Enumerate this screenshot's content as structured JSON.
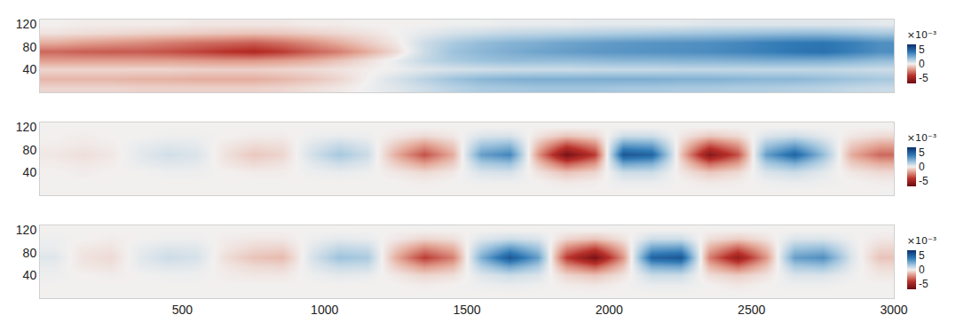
{
  "chart_data": [
    {
      "type": "heatmap",
      "tick_labels": "y",
      "x": [
        50,
        150,
        250,
        350,
        450,
        550,
        650,
        750,
        850,
        950,
        1050,
        1150,
        1250,
        1350,
        1450,
        1550,
        1650,
        1750,
        1850,
        1950,
        2050,
        2150,
        2250,
        2350,
        2450,
        2550,
        2650,
        2750,
        2850,
        2950
      ],
      "y": [
        8,
        24,
        40,
        56,
        72,
        88,
        104,
        120
      ],
      "cells": [
        [
          -0.6,
          -0.6,
          -0.6,
          -0.7,
          -0.7,
          -0.7,
          -0.7,
          -0.7,
          -0.6,
          -0.4,
          -0.2,
          0.1,
          0.4,
          0.8,
          1.2,
          1.5,
          1.6,
          1.7,
          1.7,
          1.7,
          1.6,
          1.6,
          1.5,
          1.5,
          1.4,
          1.4,
          1.3,
          1.2,
          1.0,
          0.9
        ],
        [
          -1.3,
          -1.3,
          -1.3,
          -1.4,
          -1.4,
          -1.5,
          -1.5,
          -1.5,
          -1.3,
          -1.0,
          -0.6,
          0,
          0.6,
          1.2,
          1.8,
          2.2,
          2.4,
          2.5,
          2.5,
          2.5,
          2.5,
          2.5,
          2.4,
          2.4,
          2.3,
          2.2,
          2.2,
          2.0,
          1.8,
          1.6
        ],
        [
          -0.6,
          -0.6,
          -0.6,
          -0.6,
          -0.6,
          -0.7,
          -0.7,
          -0.7,
          -0.6,
          -0.5,
          -0.3,
          -0.1,
          0.1,
          0.4,
          0.6,
          0.7,
          0.8,
          0.8,
          0.8,
          0.9,
          0.9,
          0.9,
          1.0,
          1.0,
          1.0,
          1.0,
          1.0,
          1.0,
          0.9,
          0.8
        ],
        [
          -1.8,
          -1.8,
          -1.8,
          -1.8,
          -1.8,
          -1.9,
          -2.0,
          -2.0,
          -1.8,
          -1.5,
          -1.0,
          -0.4,
          0.2,
          1.0,
          1.5,
          1.8,
          2.0,
          2.0,
          2.0,
          2.1,
          2.2,
          2.2,
          2.3,
          2.3,
          2.4,
          2.5,
          2.5,
          2.5,
          2.3,
          2.0
        ],
        [
          -3.0,
          -3.2,
          -3.3,
          -3.3,
          -3.5,
          -3.8,
          -4.2,
          -4.5,
          -4.0,
          -3.2,
          -2.5,
          -1.5,
          -0.5,
          0.8,
          1.8,
          2.2,
          2.5,
          2.8,
          3.0,
          3.2,
          3.3,
          3.4,
          3.5,
          3.6,
          3.8,
          4.0,
          4.3,
          4.5,
          4.0,
          3.5
        ],
        [
          -1.5,
          -1.8,
          -2.0,
          -2.2,
          -2.5,
          -2.8,
          -3.0,
          -3.2,
          -2.8,
          -2.2,
          -1.5,
          -0.8,
          -0.2,
          0.8,
          1.5,
          2.0,
          2.3,
          2.5,
          2.8,
          3.0,
          3.2,
          3.3,
          3.4,
          3.5,
          3.7,
          4.0,
          4.2,
          4.3,
          4.0,
          3.5
        ],
        [
          -0.3,
          -0.4,
          -0.5,
          -0.6,
          -0.7,
          -0.8,
          -0.9,
          -1.0,
          -0.9,
          -0.7,
          -0.5,
          -0.3,
          0,
          0.3,
          0.6,
          0.8,
          1.0,
          1.1,
          1.2,
          1.3,
          1.4,
          1.5,
          1.6,
          1.7,
          1.8,
          1.9,
          2.0,
          2.0,
          1.8,
          1.6
        ],
        [
          0,
          -0.1,
          -0.1,
          -0.1,
          -0.1,
          -0.2,
          -0.2,
          -0.2,
          -0.2,
          -0.1,
          -0.1,
          0,
          0,
          0,
          0.1,
          0.1,
          0.2,
          0.2,
          0.2,
          0.3,
          0.3,
          0.3,
          0.3,
          0.4,
          0.4,
          0.4,
          0.4,
          0.4,
          0.4,
          0.3
        ]
      ],
      "xlim": [
        0,
        3000
      ],
      "ylim": [
        0,
        128
      ],
      "xticks": [
        500,
        1000,
        1500,
        2000,
        2500,
        3000
      ],
      "yticks": [
        40,
        80,
        120
      ],
      "colorbar": {
        "range": [
          -7,
          7
        ],
        "ticks": [
          -5,
          0,
          5
        ],
        "title": "×10⁻³"
      }
    },
    {
      "type": "heatmap",
      "tick_labels": "y",
      "x": [
        50,
        150,
        250,
        350,
        450,
        550,
        650,
        750,
        850,
        950,
        1050,
        1150,
        1250,
        1350,
        1450,
        1550,
        1650,
        1750,
        1850,
        1950,
        2050,
        2150,
        2250,
        2350,
        2450,
        2550,
        2650,
        2750,
        2850,
        2950
      ],
      "y": [
        8,
        24,
        40,
        56,
        72,
        88,
        104,
        120
      ],
      "cells": [
        [
          0,
          0,
          0,
          0,
          0,
          0,
          0,
          0,
          0,
          0,
          0,
          0,
          0,
          0,
          0,
          0,
          0,
          0,
          0,
          0,
          0,
          0,
          0,
          0,
          0,
          0,
          0,
          0,
          0,
          0
        ],
        [
          0,
          0,
          0,
          0,
          0,
          0,
          0,
          0,
          0,
          0,
          0,
          0,
          0,
          -0.1,
          0,
          0.1,
          0.1,
          0,
          -0.2,
          -0.1,
          0.2,
          0.2,
          0,
          -0.2,
          -0.1,
          0.1,
          0.2,
          0.1,
          0,
          -0.1
        ],
        [
          0,
          -0.1,
          0,
          0,
          0.1,
          0.1,
          0,
          -0.1,
          -0.1,
          0.1,
          0.2,
          0.1,
          -0.2,
          -0.5,
          -0.2,
          0.5,
          0.6,
          -0.3,
          -1.0,
          -0.6,
          0.8,
          0.8,
          -0.2,
          -0.9,
          -0.5,
          0.5,
          0.8,
          0.3,
          -0.2,
          -0.5
        ],
        [
          -0.1,
          -0.2,
          -0.1,
          0.2,
          0.4,
          0.3,
          -0.2,
          -0.5,
          -0.3,
          0.3,
          0.8,
          0.4,
          -0.8,
          -1.8,
          -0.8,
          1.5,
          1.9,
          -1.0,
          -3.3,
          -2.0,
          2.8,
          2.5,
          -0.5,
          -3.0,
          -1.8,
          1.5,
          2.5,
          1.0,
          -0.8,
          -1.5
        ],
        [
          -0.2,
          -0.4,
          -0.2,
          0.3,
          0.7,
          0.5,
          -0.3,
          -0.9,
          -0.6,
          0.6,
          1.6,
          0.8,
          -1.5,
          -3.5,
          -1.5,
          3.0,
          3.8,
          -2.0,
          -6.5,
          -4.0,
          5.5,
          5.0,
          -1.0,
          -6.0,
          -3.5,
          3.0,
          5.0,
          2.0,
          -1.5,
          -3.0
        ],
        [
          -0.1,
          -0.2,
          -0.1,
          0.2,
          0.4,
          0.3,
          -0.2,
          -0.5,
          -0.4,
          0.4,
          1.0,
          0.5,
          -0.9,
          -2.1,
          -0.9,
          1.8,
          2.3,
          -1.2,
          -3.9,
          -2.4,
          3.3,
          3.0,
          -0.6,
          -3.6,
          -2.1,
          1.8,
          3.0,
          1.2,
          -0.9,
          -1.8
        ],
        [
          0,
          -0.1,
          0,
          0,
          0.1,
          0.1,
          0,
          -0.1,
          -0.1,
          0.1,
          0.2,
          0.1,
          -0.2,
          -0.5,
          -0.2,
          0.5,
          0.6,
          -0.3,
          -1.0,
          -0.6,
          0.8,
          0.8,
          -0.2,
          -0.9,
          -0.5,
          0.5,
          0.8,
          0.3,
          -0.2,
          -0.5
        ],
        [
          0,
          0,
          0,
          0,
          0,
          0,
          0,
          0,
          0,
          0,
          0,
          0,
          0,
          0,
          0,
          0,
          0,
          0,
          0,
          0,
          0,
          0,
          0,
          0,
          0,
          0,
          0,
          0,
          0,
          0
        ]
      ],
      "xlim": [
        0,
        3000
      ],
      "ylim": [
        0,
        128
      ],
      "xticks": [
        500,
        1000,
        1500,
        2000,
        2500,
        3000
      ],
      "yticks": [
        40,
        80,
        120
      ],
      "colorbar": {
        "range": [
          -7,
          7
        ],
        "ticks": [
          -5,
          0,
          5
        ],
        "title": "×10⁻³"
      }
    },
    {
      "type": "heatmap",
      "x": [
        50,
        150,
        250,
        350,
        450,
        550,
        650,
        750,
        850,
        950,
        1050,
        1150,
        1250,
        1350,
        1450,
        1550,
        1650,
        1750,
        1850,
        1950,
        2050,
        2150,
        2250,
        2350,
        2450,
        2550,
        2650,
        2750,
        2850,
        2950
      ],
      "y": [
        8,
        24,
        40,
        56,
        72,
        88,
        104,
        120
      ],
      "cells": [
        [
          0,
          0,
          0,
          0,
          0,
          0,
          0,
          0,
          0,
          0,
          0,
          0,
          0,
          0,
          0,
          0,
          0,
          0,
          0,
          0,
          0,
          0,
          0,
          0,
          0,
          0,
          0,
          0,
          0,
          0
        ],
        [
          0,
          0,
          0,
          0,
          0,
          0,
          0,
          0,
          0,
          0,
          0,
          0,
          0,
          -0.1,
          0,
          0.1,
          0.2,
          0.1,
          -0.1,
          -0.2,
          0,
          0.2,
          0.2,
          0,
          -0.2,
          0,
          0.1,
          0.1,
          0,
          0
        ],
        [
          0.1,
          0,
          -0.1,
          0,
          0.1,
          0.1,
          -0.1,
          -0.2,
          -0.2,
          0.1,
          0.3,
          0.2,
          -0.2,
          -0.6,
          -0.4,
          0.4,
          0.8,
          0.5,
          -0.6,
          -1.0,
          -0.3,
          0.8,
          0.8,
          -0.4,
          -0.8,
          -0.3,
          0.5,
          0.5,
          0.1,
          -0.2
        ],
        [
          0.2,
          -0.2,
          -0.3,
          0.2,
          0.4,
          0.3,
          -0.2,
          -0.5,
          -0.6,
          0.3,
          0.9,
          0.8,
          -0.8,
          -2.0,
          -1.3,
          1.3,
          2.8,
          1.5,
          -2.0,
          -3.3,
          -1.0,
          2.5,
          2.8,
          -1.3,
          -2.8,
          -1.0,
          1.5,
          1.8,
          0.3,
          -0.5
        ],
        [
          0.4,
          -0.3,
          -0.5,
          0.3,
          0.8,
          0.6,
          -0.4,
          -1.0,
          -1.2,
          0.5,
          1.8,
          1.5,
          -1.5,
          -4.0,
          -2.5,
          2.5,
          5.5,
          3.0,
          -4.0,
          -6.5,
          -2.0,
          5.0,
          5.5,
          -2.5,
          -5.5,
          -2.0,
          3.0,
          3.5,
          0.5,
          -1.0
        ],
        [
          0.2,
          -0.2,
          -0.3,
          0.2,
          0.5,
          0.4,
          -0.2,
          -0.6,
          -0.7,
          0.3,
          1.1,
          0.9,
          -0.9,
          -2.4,
          -1.5,
          1.5,
          3.3,
          1.8,
          -2.4,
          -3.9,
          -1.2,
          3.0,
          3.3,
          -1.5,
          -3.3,
          -1.2,
          1.8,
          2.1,
          0.3,
          -0.6
        ],
        [
          0.1,
          0,
          -0.1,
          0,
          0.1,
          0.1,
          -0.1,
          -0.2,
          -0.2,
          0.1,
          0.3,
          0.2,
          -0.2,
          -0.6,
          -0.4,
          0.4,
          0.8,
          0.5,
          -0.6,
          -1.0,
          -0.3,
          0.8,
          0.8,
          -0.4,
          -0.8,
          -0.3,
          0.5,
          0.5,
          0.1,
          -0.2
        ],
        [
          0,
          0,
          0,
          0,
          0,
          0,
          0,
          0,
          0,
          0,
          0,
          0,
          0,
          0,
          0,
          0,
          0,
          0,
          0,
          0,
          0,
          0,
          0,
          0,
          0,
          0,
          0,
          0,
          0,
          0
        ]
      ],
      "xlim": [
        0,
        3000
      ],
      "ylim": [
        0,
        128
      ],
      "xticks": [
        500,
        1000,
        1500,
        2000,
        2500,
        3000
      ],
      "yticks": [
        40,
        80,
        120
      ],
      "colorbar": {
        "range": [
          -7,
          7
        ],
        "ticks": [
          -5,
          0,
          5
        ],
        "title": "×10⁻³"
      }
    }
  ]
}
